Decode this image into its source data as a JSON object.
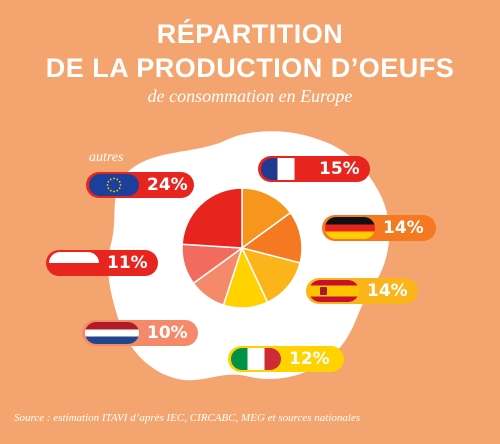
{
  "header": {
    "title_line1": "RÉPARTITION",
    "title_line2": "DE LA PRODUCTION D’OEUFS",
    "subtitle": "de consommation en Europe"
  },
  "source": "Source : estimation ITAVI d’après IEC, CIRCABC, MEG et sources nationales",
  "labels": {
    "autres": "autres"
  },
  "colors": {
    "background": "#F4A46E",
    "egg_white": "#FFFFFF"
  },
  "chart_data": {
    "type": "pie",
    "title": "RÉPARTITION DE LA PRODUCTION D’OEUFS",
    "subtitle": "de consommation en Europe",
    "slices": [
      {
        "flag": "france-flag",
        "value": 15,
        "label": "15%",
        "color": "#F7951D"
      },
      {
        "flag": "germany-flag",
        "value": 14,
        "label": "14%",
        "color": "#F47920"
      },
      {
        "flag": "spain-flag",
        "value": 14,
        "label": "14%",
        "color": "#FBB41A"
      },
      {
        "flag": "italy-flag",
        "value": 12,
        "label": "12%",
        "color": "#FFD200"
      },
      {
        "flag": "netherlands-flag",
        "value": 10,
        "label": "10%",
        "color": "#F58A6B"
      },
      {
        "flag": "poland-flag",
        "value": 11,
        "label": "11%",
        "color": "#F26B5C"
      },
      {
        "flag": "eu-flag",
        "value": 24,
        "label": "24%",
        "color": "#E8241E",
        "category": "autres"
      }
    ]
  }
}
